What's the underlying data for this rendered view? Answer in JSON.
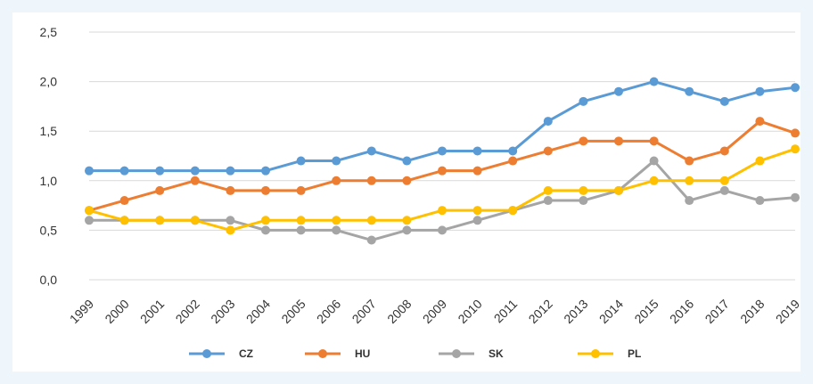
{
  "chart_data": {
    "type": "line",
    "title": "",
    "xlabel": "",
    "ylabel": "",
    "ylim": [
      0,
      2.5
    ],
    "y_ticks": [
      "0,0",
      "0,5",
      "1,0",
      "1,5",
      "2,0",
      "2,5"
    ],
    "x": [
      "1999",
      "2000",
      "2001",
      "2002",
      "2003",
      "2004",
      "2005",
      "2006",
      "2007",
      "2008",
      "2009",
      "2010",
      "2011",
      "2012",
      "2013",
      "2014",
      "2015",
      "2016",
      "2017",
      "2018",
      "2019"
    ],
    "grid": "horizontal",
    "legend_position": "bottom",
    "series": [
      {
        "name": "CZ",
        "color": "#5b9bd5",
        "values": [
          1.1,
          1.1,
          1.1,
          1.1,
          1.1,
          1.1,
          1.2,
          1.2,
          1.3,
          1.2,
          1.3,
          1.3,
          1.3,
          1.6,
          1.8,
          1.9,
          2.0,
          1.9,
          1.8,
          1.9,
          1.94
        ]
      },
      {
        "name": "HU",
        "color": "#ed7d31",
        "values": [
          0.7,
          0.8,
          0.9,
          1.0,
          0.9,
          0.9,
          0.9,
          1.0,
          1.0,
          1.0,
          1.1,
          1.1,
          1.2,
          1.3,
          1.4,
          1.4,
          1.4,
          1.2,
          1.3,
          1.6,
          1.48
        ]
      },
      {
        "name": "SK",
        "color": "#a5a5a5",
        "values": [
          0.6,
          0.6,
          0.6,
          0.6,
          0.6,
          0.5,
          0.5,
          0.5,
          0.4,
          0.5,
          0.5,
          0.6,
          0.7,
          0.8,
          0.8,
          0.9,
          1.2,
          0.8,
          0.9,
          0.8,
          0.83
        ]
      },
      {
        "name": "PL",
        "color": "#ffc000",
        "values": [
          0.7,
          0.6,
          0.6,
          0.6,
          0.5,
          0.6,
          0.6,
          0.6,
          0.6,
          0.6,
          0.7,
          0.7,
          0.7,
          0.9,
          0.9,
          0.9,
          1.0,
          1.0,
          1.0,
          1.2,
          1.32
        ]
      }
    ]
  }
}
